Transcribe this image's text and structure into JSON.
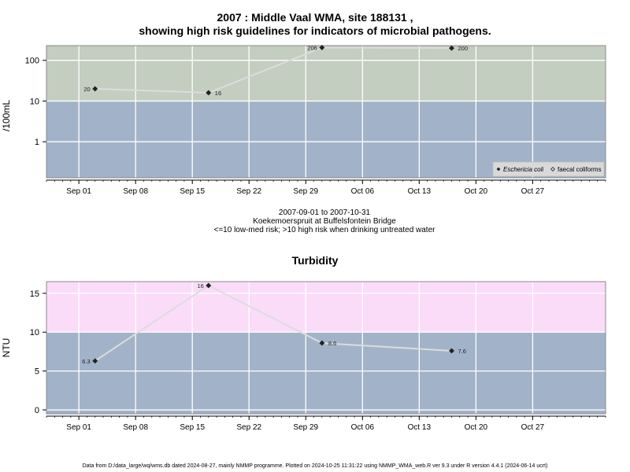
{
  "page": {
    "title_line1": "2007 : Middle Vaal WMA, site 188131 ,",
    "title_line2": "showing high risk guidelines for indicators of microbial pathogens.",
    "caption_dates": "2007-09-01 to 2007-10-31",
    "caption_site": "Koekemoerspruit at Buffelsfontein Bridge",
    "caption_risk": "<=10 low-med risk; >10 high risk when drinking untreated water",
    "footer": "Data from D:/data_large/wq/wms.db dated 2024-08-27, mainly NMMP programme. Plotted on 2024-10-25 11:31:22 using NMMP_WMA_web.R ver 9.3 under R version 4.4.1 (2024-06-14 ucrt)"
  },
  "chart_data": [
    {
      "type": "line",
      "title": "",
      "ylabel": "/100mL",
      "y_scale": "log",
      "x_range": [
        "2007-08-28",
        "2007-11-05"
      ],
      "y_range": [
        0.13,
        230
      ],
      "y_ticks": [
        {
          "value": 1,
          "label": "1"
        },
        {
          "value": 10,
          "label": "10"
        },
        {
          "value": 100,
          "label": "100"
        }
      ],
      "x_ticks": [
        {
          "date": "2007-09-01",
          "label": "Sep 01"
        },
        {
          "date": "2007-09-08",
          "label": "Sep 08"
        },
        {
          "date": "2007-09-15",
          "label": "Sep 15"
        },
        {
          "date": "2007-09-22",
          "label": "Sep 22"
        },
        {
          "date": "2007-09-29",
          "label": "Sep 29"
        },
        {
          "date": "2007-10-06",
          "label": "Oct 06"
        },
        {
          "date": "2007-10-13",
          "label": "Oct 13"
        },
        {
          "date": "2007-10-20",
          "label": "Oct 20"
        },
        {
          "date": "2007-10-27",
          "label": "Oct 27"
        }
      ],
      "bands": [
        {
          "from": 0.13,
          "to": 10,
          "color": "#a2b3c9",
          "meaning": "low-med risk"
        },
        {
          "from": 10,
          "to": 230,
          "color": "#c3cdc0",
          "meaning": "high risk"
        }
      ],
      "grid": true,
      "legend": {
        "position": "bottom-right",
        "entries": [
          {
            "label": "Eschericia coli",
            "italic": true,
            "marker": "filled-diamond"
          },
          {
            "label": "faecal coliforms",
            "italic": false,
            "marker": "open-diamond"
          }
        ]
      },
      "series": [
        {
          "name": "Eschericia coli",
          "marker": "filled-diamond",
          "line_color": "#dcdcdc",
          "points": [
            {
              "x": "2007-09-03",
              "y": 20,
              "label": "20",
              "label_side": "left"
            },
            {
              "x": "2007-09-17",
              "y": 16,
              "label": "16",
              "label_side": "right"
            },
            {
              "x": "2007-10-01",
              "y": 206,
              "label": "206",
              "label_side": "left"
            },
            {
              "x": "2007-10-17",
              "y": 200,
              "label": "200",
              "label_side": "right"
            }
          ]
        }
      ]
    },
    {
      "type": "line",
      "title": "Turbidity",
      "ylabel": "NTU",
      "y_scale": "linear",
      "x_range": [
        "2007-08-28",
        "2007-11-05"
      ],
      "y_range": [
        -0.5,
        16.5
      ],
      "y_ticks": [
        {
          "value": 0,
          "label": "0"
        },
        {
          "value": 5,
          "label": "5"
        },
        {
          "value": 10,
          "label": "10"
        },
        {
          "value": 15,
          "label": "15"
        }
      ],
      "x_ticks": [
        {
          "date": "2007-09-01",
          "label": "Sep 01"
        },
        {
          "date": "2007-09-08",
          "label": "Sep 08"
        },
        {
          "date": "2007-09-15",
          "label": "Sep 15"
        },
        {
          "date": "2007-09-22",
          "label": "Sep 22"
        },
        {
          "date": "2007-09-29",
          "label": "Sep 29"
        },
        {
          "date": "2007-10-06",
          "label": "Oct 06"
        },
        {
          "date": "2007-10-13",
          "label": "Oct 13"
        },
        {
          "date": "2007-10-20",
          "label": "Oct 20"
        },
        {
          "date": "2007-10-27",
          "label": "Oct 27"
        }
      ],
      "bands": [
        {
          "from": -0.5,
          "to": 10,
          "color": "#a2b3c9"
        },
        {
          "from": 10,
          "to": 16.5,
          "color": "#fadcf9"
        }
      ],
      "grid": true,
      "series": [
        {
          "name": "",
          "marker": "filled-diamond",
          "line_color": "#dcdcdc",
          "points": [
            {
              "x": "2007-09-03",
              "y": 6.3,
              "label": "6.3",
              "label_side": "left"
            },
            {
              "x": "2007-09-17",
              "y": 16,
              "label": "16",
              "label_side": "left"
            },
            {
              "x": "2007-10-01",
              "y": 8.6,
              "label": "8.6",
              "label_side": "right"
            },
            {
              "x": "2007-10-17",
              "y": 7.6,
              "label": "7.6",
              "label_side": "right"
            }
          ]
        }
      ]
    }
  ]
}
